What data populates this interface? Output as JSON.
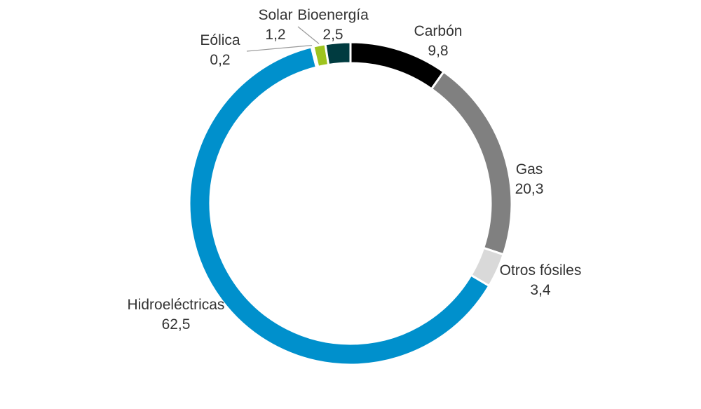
{
  "chart_data": {
    "type": "pie",
    "title": "",
    "variant": "donut",
    "start_angle_deg": 0,
    "direction": "clockwise",
    "decimal_separator": ",",
    "slices": [
      {
        "name": "Carbón",
        "value_label": "9,8",
        "value": 9.8,
        "color": "#000000"
      },
      {
        "name": "Gas",
        "value_label": "20,3",
        "value": 20.3,
        "color": "#808080"
      },
      {
        "name": "Otros fósiles",
        "value_label": "3,4",
        "value": 3.4,
        "color": "#d9d9d9"
      },
      {
        "name": "Hidroeléctricas",
        "value_label": "62,5",
        "value": 62.5,
        "color": "#0090cc"
      },
      {
        "name": "Eólica",
        "value_label": "0,2",
        "value": 0.2,
        "color": "#5fb4e6"
      },
      {
        "name": "Solar",
        "value_label": "1,2",
        "value": 1.2,
        "color": "#9ec41f"
      },
      {
        "name": "Bioenergía",
        "value_label": "2,5",
        "value": 2.5,
        "color": "#003b40"
      }
    ]
  }
}
